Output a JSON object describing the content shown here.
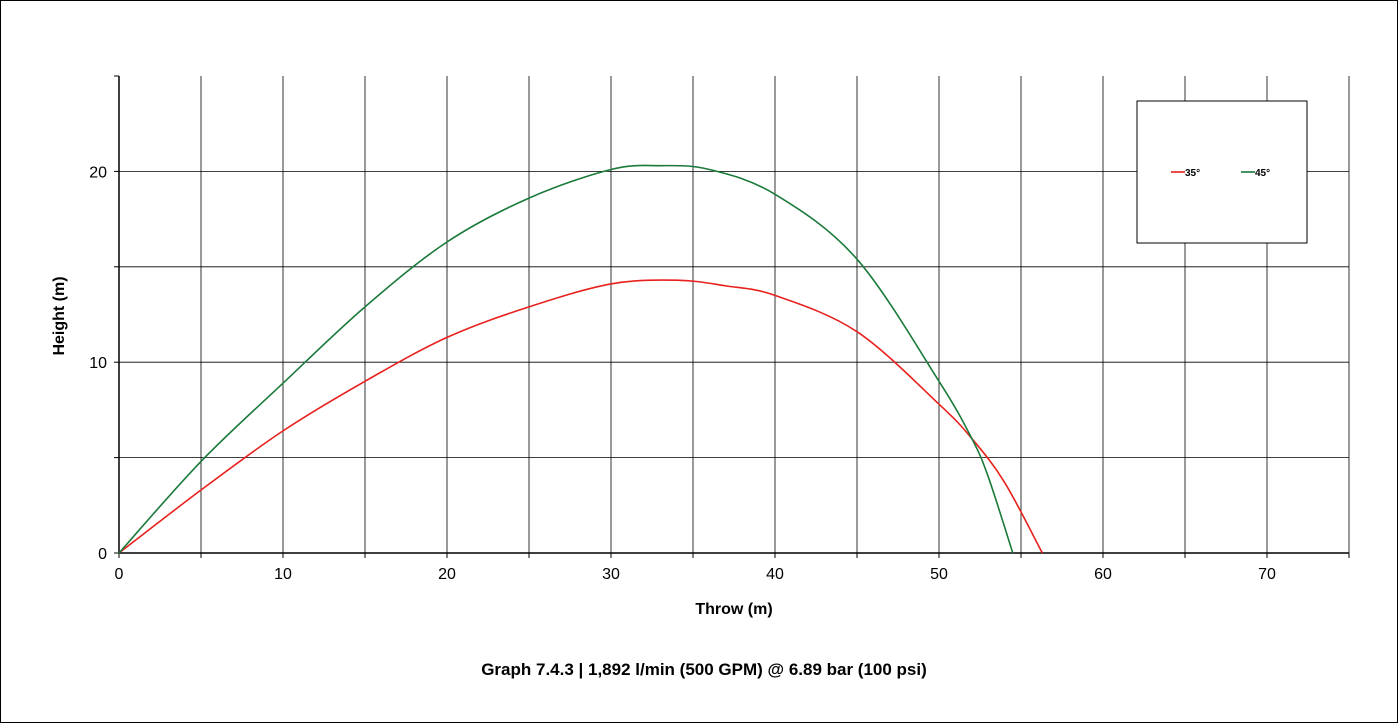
{
  "caption": "Graph 7.4.3 | 1,892 l/min (500 GPM) @ 6.89 bar (100 psi)",
  "chart_data": {
    "type": "line",
    "xlabel": "Throw (m)",
    "ylabel": "Height (m)",
    "xlim": [
      0,
      75
    ],
    "ylim": [
      0,
      25
    ],
    "x_ticks": [
      0,
      10,
      20,
      30,
      40,
      50,
      60,
      70
    ],
    "y_ticks": [
      0,
      10,
      20
    ],
    "x_minor": 5,
    "y_minor": 5,
    "grid": true,
    "legend_position": "top-right",
    "series": [
      {
        "name": "35°",
        "color": "#e8211d",
        "points": [
          [
            0,
            0
          ],
          [
            5,
            3.3
          ],
          [
            10,
            6.4
          ],
          [
            15,
            9.0
          ],
          [
            20,
            11.3
          ],
          [
            25,
            12.9
          ],
          [
            30,
            14.1
          ],
          [
            34,
            14.3
          ],
          [
            37,
            14.0
          ],
          [
            40,
            13.5
          ],
          [
            45,
            11.6
          ],
          [
            50,
            7.8
          ],
          [
            52,
            6.0
          ],
          [
            54,
            3.7
          ],
          [
            56.3,
            0
          ]
        ]
      },
      {
        "name": "45°",
        "color": "#1a7a3a",
        "points": [
          [
            0,
            0
          ],
          [
            5,
            4.8
          ],
          [
            10,
            8.9
          ],
          [
            15,
            12.9
          ],
          [
            20,
            16.3
          ],
          [
            25,
            18.6
          ],
          [
            30,
            20.1
          ],
          [
            33,
            20.3
          ],
          [
            36,
            20.1
          ],
          [
            40,
            18.8
          ],
          [
            45,
            15.4
          ],
          [
            50,
            9.0
          ],
          [
            52,
            6.0
          ],
          [
            53,
            4.0
          ],
          [
            54.5,
            0
          ]
        ]
      }
    ]
  }
}
